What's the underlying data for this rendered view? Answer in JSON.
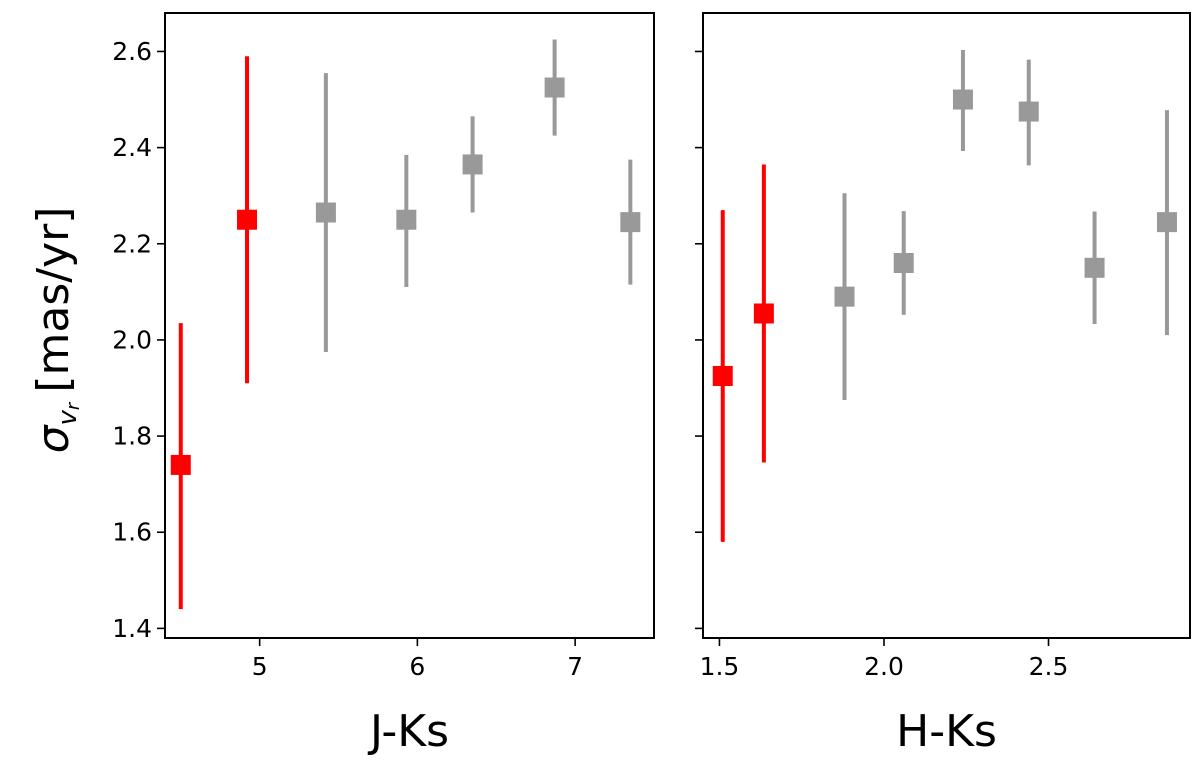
{
  "figure": {
    "ylabel": "σ",
    "ylabel_sub": "v",
    "ylabel_subsub": "r",
    "ylabel_unit": "[mas/yr]"
  },
  "chart_data": [
    {
      "type": "scatter",
      "title": "",
      "xlabel": "J-Ks",
      "ylabel": "σ_{v_r} [mas/yr]",
      "xlim": [
        4.4,
        7.5
      ],
      "ylim": [
        1.38,
        2.68
      ],
      "xticks": [
        5,
        6,
        7
      ],
      "xtick_labels": [
        "5",
        "6",
        "7"
      ],
      "yticks": [
        1.4,
        1.6,
        1.8,
        2.0,
        2.2,
        2.4,
        2.6
      ],
      "ytick_labels": [
        "1.4",
        "1.6",
        "1.8",
        "2.0",
        "2.2",
        "2.4",
        "2.6"
      ],
      "grid": false,
      "marker": "square",
      "points": [
        {
          "x": 4.5,
          "y": 1.74,
          "ylow": 1.44,
          "yhigh": 2.035,
          "color": "#ff0000"
        },
        {
          "x": 4.92,
          "y": 2.25,
          "ylow": 1.91,
          "yhigh": 2.59,
          "color": "#ff0000"
        },
        {
          "x": 5.42,
          "y": 2.265,
          "ylow": 1.975,
          "yhigh": 2.555,
          "color": "#999999"
        },
        {
          "x": 5.93,
          "y": 2.25,
          "ylow": 2.11,
          "yhigh": 2.385,
          "color": "#999999"
        },
        {
          "x": 6.35,
          "y": 2.365,
          "ylow": 2.265,
          "yhigh": 2.465,
          "color": "#999999"
        },
        {
          "x": 6.87,
          "y": 2.525,
          "ylow": 2.425,
          "yhigh": 2.625,
          "color": "#999999"
        },
        {
          "x": 7.35,
          "y": 2.245,
          "ylow": 2.115,
          "yhigh": 2.375,
          "color": "#999999"
        }
      ]
    },
    {
      "type": "scatter",
      "title": "",
      "xlabel": "H-Ks",
      "ylabel": "",
      "xlim": [
        1.45,
        2.93
      ],
      "ylim": [
        1.38,
        2.68
      ],
      "xticks": [
        1.5,
        2.0,
        2.5
      ],
      "xtick_labels": [
        "1.5",
        "2.0",
        "2.5"
      ],
      "yticks": [
        1.4,
        1.6,
        1.8,
        2.0,
        2.2,
        2.4,
        2.6
      ],
      "ytick_labels": [],
      "grid": false,
      "marker": "square",
      "points": [
        {
          "x": 1.51,
          "y": 1.925,
          "ylow": 1.58,
          "yhigh": 2.27,
          "color": "#ff0000"
        },
        {
          "x": 1.635,
          "y": 2.055,
          "ylow": 1.745,
          "yhigh": 2.365,
          "color": "#ff0000"
        },
        {
          "x": 1.88,
          "y": 2.09,
          "ylow": 1.875,
          "yhigh": 2.305,
          "color": "#999999"
        },
        {
          "x": 2.06,
          "y": 2.16,
          "ylow": 2.052,
          "yhigh": 2.268,
          "color": "#999999"
        },
        {
          "x": 2.24,
          "y": 2.5,
          "ylow": 2.393,
          "yhigh": 2.603,
          "color": "#999999"
        },
        {
          "x": 2.44,
          "y": 2.475,
          "ylow": 2.363,
          "yhigh": 2.583,
          "color": "#999999"
        },
        {
          "x": 2.64,
          "y": 2.15,
          "ylow": 2.033,
          "yhigh": 2.267,
          "color": "#999999"
        },
        {
          "x": 2.86,
          "y": 2.245,
          "ylow": 2.01,
          "yhigh": 2.478,
          "color": "#999999"
        }
      ]
    }
  ]
}
